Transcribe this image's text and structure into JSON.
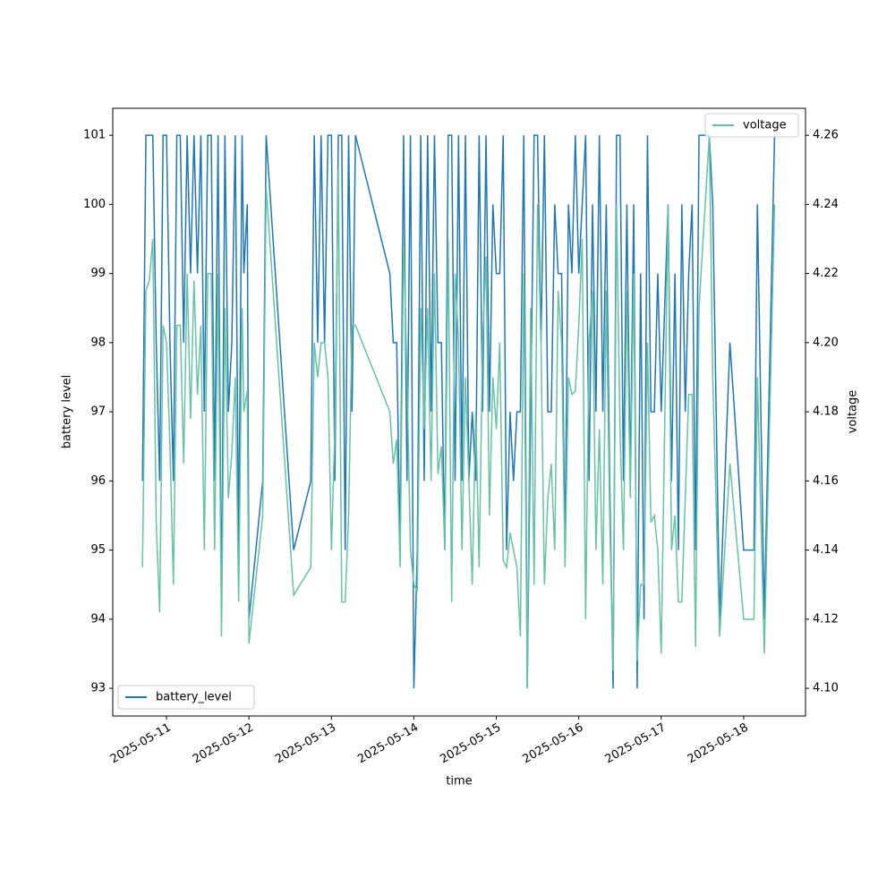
{
  "chart_data": {
    "type": "line",
    "xlabel": "time",
    "ylabel": "battery level",
    "y2label": "voltage",
    "xlim": [
      "2025-05-10T08:21",
      "2025-05-18T18:00"
    ],
    "xticks": [
      "2025-05-11",
      "2025-05-12",
      "2025-05-13",
      "2025-05-14",
      "2025-05-15",
      "2025-05-16",
      "2025-05-17",
      "2025-05-18"
    ],
    "ylim": [
      92.6,
      101.39
    ],
    "yticks": [
      93,
      94,
      95,
      96,
      97,
      98,
      99,
      100,
      101
    ],
    "y2lim": [
      4.092,
      4.2678
    ],
    "y2ticks": [
      {
        "value": 4.1,
        "label": "4.10"
      },
      4.12,
      4.14,
      4.16,
      4.18,
      {
        "value": 4.2,
        "label": "4.20"
      },
      4.22,
      4.24,
      4.26
    ],
    "x": [
      "2025-05-10T17:00",
      "2025-05-10T18:00",
      "2025-05-10T19:00",
      "2025-05-10T20:00",
      "2025-05-10T21:00",
      "2025-05-10T22:00",
      "2025-05-10T23:00",
      "2025-05-11T00:00",
      "2025-05-11T01:00",
      "2025-05-11T02:00",
      "2025-05-11T03:00",
      "2025-05-11T04:00",
      "2025-05-11T05:00",
      "2025-05-11T06:00",
      "2025-05-11T07:00",
      "2025-05-11T08:00",
      "2025-05-11T09:00",
      "2025-05-11T10:00",
      "2025-05-11T11:00",
      "2025-05-11T12:00",
      "2025-05-11T13:00",
      "2025-05-11T14:00",
      "2025-05-11T15:00",
      "2025-05-11T16:00",
      "2025-05-11T17:00",
      "2025-05-11T18:00",
      "2025-05-11T19:00",
      "2025-05-11T20:00",
      "2025-05-11T21:00",
      "2025-05-11T22:00",
      "2025-05-11T22:30",
      "2025-05-11T23:30",
      "2025-05-12T00:00",
      "2025-05-12T04:00",
      "2025-05-12T05:00",
      "2025-05-12T13:00",
      "2025-05-12T18:00",
      "2025-05-12T19:00",
      "2025-05-12T20:00",
      "2025-05-12T21:00",
      "2025-05-12T22:00",
      "2025-05-12T23:00",
      "2025-05-13T00:00",
      "2025-05-13T01:00",
      "2025-05-13T02:00",
      "2025-05-13T03:00",
      "2025-05-13T04:00",
      "2025-05-13T05:00",
      "2025-05-13T06:00",
      "2025-05-13T07:00",
      "2025-05-13T17:00",
      "2025-05-13T18:00",
      "2025-05-13T19:00",
      "2025-05-13T20:00",
      "2025-05-13T21:00",
      "2025-05-13T22:00",
      "2025-05-13T23:00",
      "2025-05-14T00:00",
      "2025-05-14T01:00",
      "2025-05-14T02:00",
      "2025-05-14T03:00",
      "2025-05-14T04:00",
      "2025-05-14T05:00",
      "2025-05-14T06:00",
      "2025-05-14T07:00",
      "2025-05-14T08:00",
      "2025-05-14T09:00",
      "2025-05-14T10:00",
      "2025-05-14T11:00",
      "2025-05-14T12:00",
      "2025-05-14T13:00",
      "2025-05-14T14:00",
      "2025-05-14T15:00",
      "2025-05-14T16:00",
      "2025-05-14T17:00",
      "2025-05-14T18:00",
      "2025-05-14T19:00",
      "2025-05-14T20:00",
      "2025-05-14T21:00",
      "2025-05-14T22:00",
      "2025-05-14T23:00",
      "2025-05-15T00:00",
      "2025-05-15T01:00",
      "2025-05-15T02:00",
      "2025-05-15T03:00",
      "2025-05-15T04:00",
      "2025-05-15T05:00",
      "2025-05-15T06:00",
      "2025-05-15T07:00",
      "2025-05-15T08:00",
      "2025-05-15T09:00",
      "2025-05-15T10:00",
      "2025-05-15T11:00",
      "2025-05-15T12:00",
      "2025-05-15T13:00",
      "2025-05-15T14:00",
      "2025-05-15T15:00",
      "2025-05-15T16:00",
      "2025-05-15T17:00",
      "2025-05-15T18:00",
      "2025-05-15T19:00",
      "2025-05-15T20:00",
      "2025-05-15T21:00",
      "2025-05-15T22:00",
      "2025-05-15T23:00",
      "2025-05-16T00:00",
      "2025-05-16T01:00",
      "2025-05-16T02:00",
      "2025-05-16T03:00",
      "2025-05-16T04:00",
      "2025-05-16T05:00",
      "2025-05-16T06:00",
      "2025-05-16T07:00",
      "2025-05-16T08:00",
      "2025-05-16T09:00",
      "2025-05-16T10:00",
      "2025-05-16T11:00",
      "2025-05-16T12:00",
      "2025-05-16T13:00",
      "2025-05-16T14:00",
      "2025-05-16T15:00",
      "2025-05-16T16:00",
      "2025-05-16T17:00",
      "2025-05-16T18:00",
      "2025-05-16T19:00",
      "2025-05-16T20:00",
      "2025-05-16T21:00",
      "2025-05-16T22:00",
      "2025-05-16T23:00",
      "2025-05-17T00:00",
      "2025-05-17T02:00",
      "2025-05-17T03:00",
      "2025-05-17T04:00",
      "2025-05-17T05:00",
      "2025-05-17T06:00",
      "2025-05-17T07:00",
      "2025-05-17T08:00",
      "2025-05-17T09:00",
      "2025-05-17T10:00",
      "2025-05-17T11:00",
      "2025-05-17T14:00",
      "2025-05-17T15:00",
      "2025-05-17T17:00",
      "2025-05-17T20:00",
      "2025-05-18T00:00",
      "2025-05-18T03:00",
      "2025-05-18T04:00",
      "2025-05-18T06:00",
      "2025-05-18T09:00"
    ],
    "series": [
      {
        "name": "battery_level",
        "color": "#1f77b4",
        "legend": "lower left",
        "values": [
          96,
          101,
          101,
          101,
          98,
          96,
          101,
          101,
          98,
          96,
          101,
          101,
          98,
          101,
          99,
          101,
          99,
          101,
          97,
          101,
          101,
          96,
          101,
          94,
          101,
          97,
          98,
          101,
          95,
          101,
          99,
          100,
          94,
          96,
          101,
          95,
          96,
          101,
          98,
          101,
          98,
          101,
          101,
          96,
          101,
          101,
          95,
          101,
          97,
          101,
          99,
          98,
          98,
          95,
          101,
          96,
          101,
          93,
          95,
          101,
          96,
          101,
          97,
          101,
          98,
          98,
          95,
          101,
          101,
          96,
          101,
          96,
          101,
          96,
          97,
          96,
          101,
          97,
          101,
          97,
          100,
          99,
          99,
          101,
          95,
          97,
          96,
          97,
          97,
          101,
          93,
          97,
          101,
          101,
          98,
          101,
          97,
          97,
          100,
          99,
          99,
          95,
          100,
          99,
          101,
          99,
          100,
          101,
          96,
          100,
          97,
          101,
          97,
          100,
          96,
          93,
          101,
          101,
          96,
          100,
          96,
          100,
          93,
          99,
          94,
          101,
          97,
          97,
          99,
          97,
          100,
          96,
          99,
          95,
          100,
          97,
          99,
          100,
          95,
          101,
          101,
          100,
          94,
          98,
          95,
          95,
          100,
          94,
          101
        ]
      },
      {
        "name": "voltage",
        "color": "#66c2a5",
        "axis": "y2",
        "legend": "upper right",
        "values": [
          4.135,
          4.215,
          4.218,
          4.23,
          4.148,
          4.122,
          4.205,
          4.2,
          4.17,
          4.13,
          4.205,
          4.205,
          4.165,
          4.22,
          4.178,
          4.218,
          4.185,
          4.205,
          4.14,
          4.22,
          4.22,
          4.14,
          4.22,
          4.115,
          4.21,
          4.155,
          4.168,
          4.19,
          4.125,
          4.21,
          4.18,
          4.186,
          4.113,
          4.15,
          4.245,
          4.127,
          4.135,
          4.2,
          4.19,
          4.2,
          4.2,
          4.19,
          4.14,
          4.175,
          4.25,
          4.125,
          4.125,
          4.15,
          4.205,
          4.205,
          4.18,
          4.165,
          4.172,
          4.135,
          4.23,
          4.19,
          4.14,
          4.13,
          4.128,
          4.21,
          4.175,
          4.21,
          4.16,
          4.22,
          4.162,
          4.17,
          4.14,
          4.23,
          4.125,
          4.22,
          4.2,
          4.14,
          4.19,
          4.16,
          4.13,
          4.18,
          4.135,
          4.2,
          4.225,
          4.15,
          4.19,
          4.175,
          4.2,
          4.137,
          4.135,
          4.145,
          4.14,
          4.135,
          4.115,
          4.22,
          4.1,
          4.21,
          4.13,
          4.24,
          4.2,
          4.13,
          4.155,
          4.165,
          4.14,
          4.215,
          4.2,
          4.135,
          4.19,
          4.185,
          4.186,
          4.205,
          4.23,
          4.12,
          4.2,
          4.215,
          4.14,
          4.175,
          4.13,
          4.215,
          4.15,
          4.105,
          4.24,
          4.175,
          4.14,
          4.215,
          4.155,
          4.22,
          4.108,
          4.13,
          4.13,
          4.2,
          4.148,
          4.15,
          4.14,
          4.11,
          4.24,
          4.14,
          4.15,
          4.125,
          4.125,
          4.155,
          4.185,
          4.185,
          4.112,
          4.21,
          4.26,
          4.19,
          4.115,
          4.165,
          4.12,
          4.12,
          4.19,
          4.11,
          4.24
        ]
      }
    ]
  }
}
